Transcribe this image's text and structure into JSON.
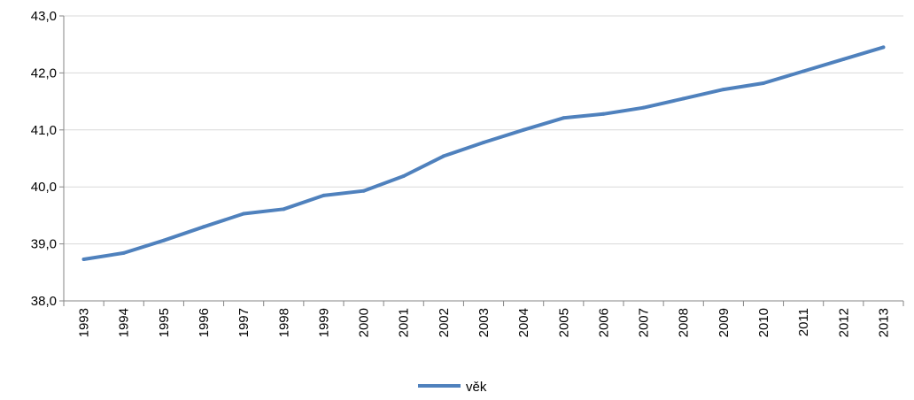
{
  "chart_data": {
    "type": "line",
    "title": "",
    "xlabel": "",
    "ylabel": "",
    "categories": [
      "1993",
      "1994",
      "1995",
      "1996",
      "1997",
      "1998",
      "1999",
      "2000",
      "2001",
      "2002",
      "2003",
      "2004",
      "2005",
      "2006",
      "2007",
      "2008",
      "2009",
      "2010",
      "2011",
      "2012",
      "2013"
    ],
    "series": [
      {
        "name": "věk",
        "values": [
          38.73,
          38.84,
          39.06,
          39.3,
          39.53,
          39.61,
          39.85,
          39.93,
          40.19,
          40.54,
          40.78,
          41.0,
          41.21,
          41.28,
          41.39,
          41.55,
          41.71,
          41.82,
          42.03,
          42.24,
          42.45
        ]
      }
    ],
    "ylim": [
      38.0,
      43.0
    ],
    "y_ticks": [
      "38,0",
      "39,0",
      "40,0",
      "41,0",
      "42,0",
      "43,0"
    ],
    "grid": "horizontal",
    "legend_position": "bottom",
    "colors": {
      "series": "#4F81BD",
      "grid": "#D9D9D9",
      "axis": "#868686"
    }
  }
}
